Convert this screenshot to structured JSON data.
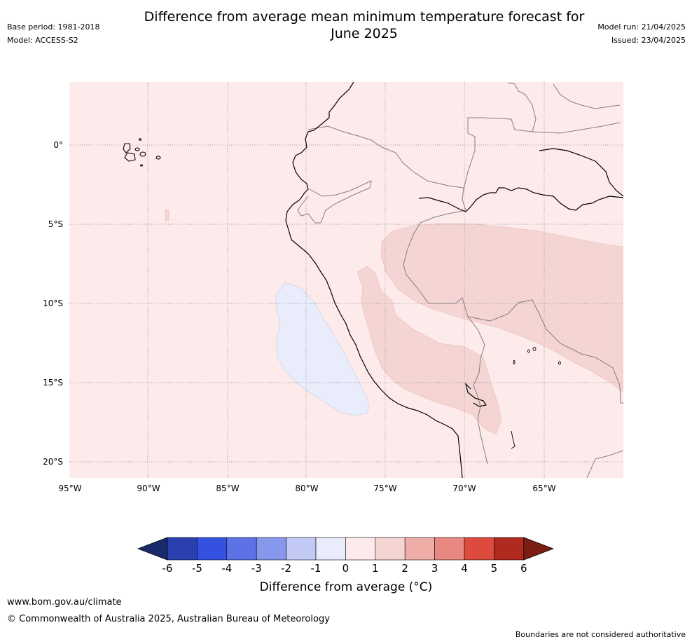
{
  "title_line1": "Difference from average mean minimum temperature forecast for",
  "title_line2": "June 2025",
  "base_period": "Base period: 1981-2018",
  "model": "Model: ACCESS-S2",
  "model_run": "Model run: 21/04/2025",
  "issued": "Issued: 23/04/2025",
  "lat_labels": [
    "0°",
    "5°S",
    "10°S",
    "15°S",
    "20°S"
  ],
  "lon_labels": [
    "95°W",
    "90°W",
    "85°W",
    "80°W",
    "75°W",
    "70°W",
    "65°W"
  ],
  "colorbar": {
    "title": "Difference from average (°C)",
    "tick_labels": [
      "-6",
      "-5",
      "-4",
      "-3",
      "-2",
      "-1",
      "0",
      "1",
      "2",
      "3",
      "4",
      "5",
      "6"
    ],
    "colors": [
      "#1a2a6c",
      "#2a3fb0",
      "#3451e0",
      "#5c72e6",
      "#8797ec",
      "#c2c9f5",
      "#e9ecfb",
      "#fcebea",
      "#f5d5d3",
      "#efada8",
      "#e88881",
      "#dc4b3e",
      "#b02a20",
      "#7a1e14"
    ]
  },
  "map_colors": {
    "background": "#fcebea",
    "cool_anomaly": "#e9ecfb",
    "warm_anomaly": "#f5d5d3",
    "coastline": "#000000",
    "border": "#808080"
  },
  "footer_url": "www.bom.gov.au/climate",
  "footer_copyright": "© Commonwealth of Australia 2025, Australian Bureau of Meteorology",
  "footer_note": "Boundaries are not considered authoritative"
}
